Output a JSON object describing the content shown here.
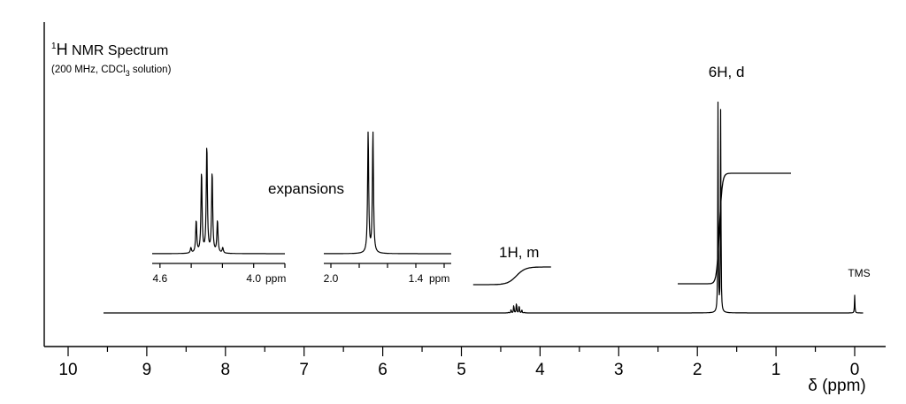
{
  "chart_data": {
    "type": "line",
    "title_sup": "1",
    "title_main": "H",
    "title_rest": " NMR Spectrum",
    "subtitle_pre": "(200 MHz, CDCl",
    "subtitle_sub": "3",
    "subtitle_post": " solution)",
    "xlabel": "δ (ppm)",
    "xlim": [
      10,
      0
    ],
    "x_ticks": [
      "10",
      "9",
      "8",
      "7",
      "6",
      "5",
      "4",
      "3",
      "2",
      "1",
      "0"
    ],
    "x_minor_step": 0.5,
    "baseline_start_ppm": 9.55,
    "peaks": [
      {
        "ppm": 4.3,
        "label": "1H, m",
        "height": 0.06,
        "multiplicity": "septet"
      },
      {
        "ppm": 1.72,
        "label": "6H, d",
        "height": 1.0,
        "multiplicity": "doublet"
      },
      {
        "ppm": 0.0,
        "label": "TMS",
        "height": 0.08,
        "multiplicity": "singlet"
      }
    ],
    "integrals": [
      {
        "label": "1H, m",
        "from_ppm": 4.85,
        "to_ppm": 3.85,
        "relative_step": 1
      },
      {
        "label": "6H, d",
        "from_ppm": 2.25,
        "to_ppm": 0.8,
        "relative_step": 6
      }
    ],
    "insets_label": "expansions",
    "insets": [
      {
        "x_ticks": [
          "4.6",
          "4.0"
        ],
        "xlim": [
          4.65,
          3.8
        ],
        "unit": "ppm",
        "center_ppm": 4.3
      },
      {
        "x_ticks": [
          "2.0",
          "1.4"
        ],
        "xlim": [
          2.05,
          1.15
        ],
        "unit": "ppm",
        "center_ppm": 1.72
      }
    ]
  }
}
